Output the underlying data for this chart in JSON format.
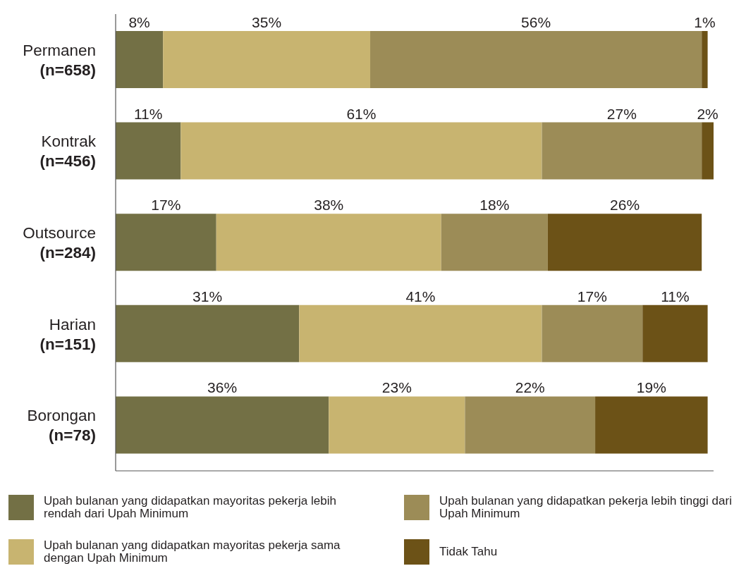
{
  "chart_data": {
    "type": "bar",
    "orientation": "horizontal",
    "stacked": true,
    "categories": [
      "Permanen\n(n=658)",
      "Kontrak\n(n=456)",
      "Outsource\n(n=284)",
      "Harian\n(n=151)",
      "Borongan\n(n=78)"
    ],
    "series": [
      {
        "name": "Upah bulanan yang didapatkan mayoritas pekerja lebih rendah dari Upah Minimum",
        "color": "#737045",
        "values": [
          8,
          11,
          17,
          31,
          36
        ],
        "value_labels": [
          "8%",
          "11%",
          "17%",
          "31%",
          "36%"
        ]
      },
      {
        "name": "Upah bulanan yang didapatkan mayoritas pekerja sama dengan Upah Minimum",
        "color": "#c8b470",
        "values": [
          35,
          61,
          38,
          41,
          23
        ],
        "value_labels": [
          "35%",
          "61%",
          "38%",
          "41%",
          "23%"
        ]
      },
      {
        "name": "Upah bulanan yang didapatkan pekerja lebih tinggi dari Upah Minimum",
        "color": "#9c8c57",
        "values": [
          56,
          27,
          18,
          17,
          22
        ],
        "value_labels": [
          "56%",
          "27%",
          "18%",
          "17%",
          "22%"
        ]
      },
      {
        "name": "Tidak Tahu",
        "color": "#6c5217",
        "values": [
          1,
          2,
          26,
          11,
          19
        ],
        "value_labels": [
          "1%",
          "2%",
          "26%",
          "11%",
          "19%"
        ]
      }
    ],
    "xlim": [
      0,
      101
    ],
    "tick_labels": "y",
    "legend": "bottom"
  }
}
